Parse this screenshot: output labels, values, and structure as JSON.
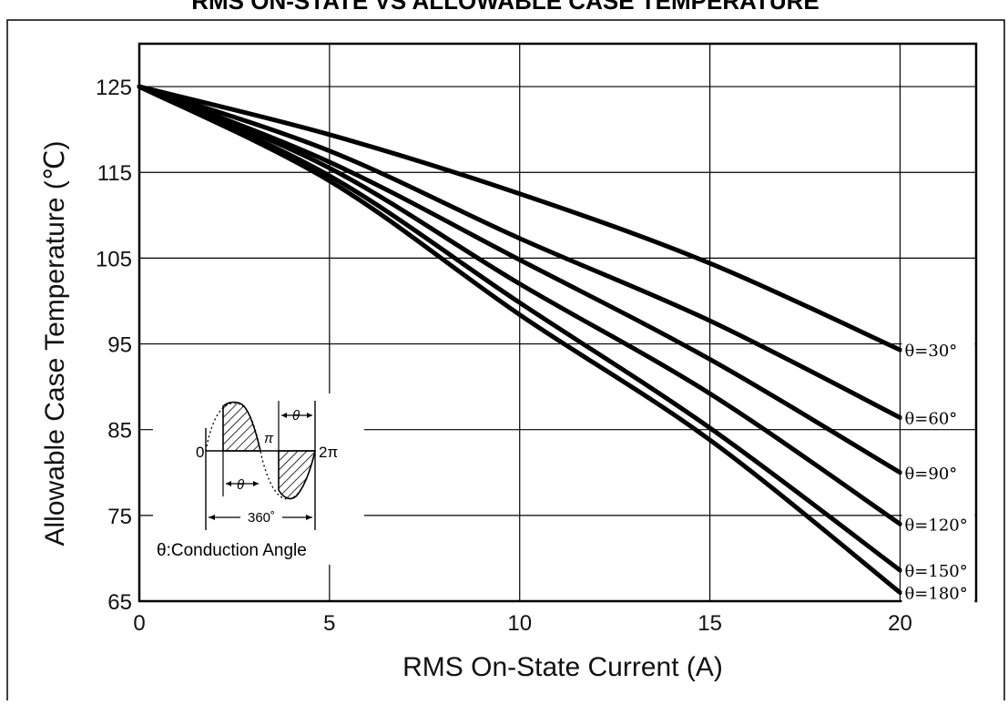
{
  "page": {
    "title": "RMS ON-STATE VS ALLOWABLE CASE TEMPERATURE"
  },
  "chart_data": {
    "type": "line",
    "title": "RMS ON-STATE VS ALLOWABLE CASE TEMPERATURE",
    "xlabel": "RMS On-State Current (A)",
    "ylabel": "Allowable Case Temperature (℃)",
    "xlim": [
      0,
      22
    ],
    "ylim": [
      65,
      130
    ],
    "xticks": [
      0,
      5,
      10,
      15,
      20
    ],
    "yticks": [
      65,
      75,
      85,
      95,
      105,
      115,
      125
    ],
    "grid": true,
    "series": [
      {
        "name": "θ=30°",
        "label": "θ=30°",
        "x": [
          0,
          5,
          10,
          15,
          20
        ],
        "y": [
          125,
          119.4,
          112.5,
          104.4,
          94.3
        ]
      },
      {
        "name": "θ=60°",
        "label": "θ=60°",
        "x": [
          0,
          5,
          10,
          15,
          20
        ],
        "y": [
          125,
          117.5,
          107.3,
          97.7,
          86.4
        ]
      },
      {
        "name": "θ=90°",
        "label": "θ=90°",
        "x": [
          0,
          5,
          10,
          15,
          20
        ],
        "y": [
          125,
          116.2,
          104.8,
          93.2,
          80.0
        ]
      },
      {
        "name": "θ=120°",
        "label": "θ=120°",
        "x": [
          0,
          5,
          10,
          15,
          20
        ],
        "y": [
          125,
          115.5,
          102.0,
          89.2,
          74.0
        ]
      },
      {
        "name": "θ=150°",
        "label": "θ=150°",
        "x": [
          0,
          5,
          10,
          15,
          20
        ],
        "y": [
          125,
          114.6,
          99.8,
          85.2,
          68.6
        ]
      },
      {
        "name": "θ=180°",
        "label": "θ=180°",
        "x": [
          0,
          5,
          10,
          15,
          20
        ],
        "y": [
          125,
          114.0,
          98.4,
          83.8,
          66.0
        ]
      }
    ],
    "inset": {
      "label_zero": "0",
      "label_pi": "π",
      "label_two_pi": "2π",
      "label_theta_top": "θ",
      "label_theta_bottom": "θ",
      "label_360": "360˚",
      "caption": "θ:Conduction Angle"
    }
  }
}
